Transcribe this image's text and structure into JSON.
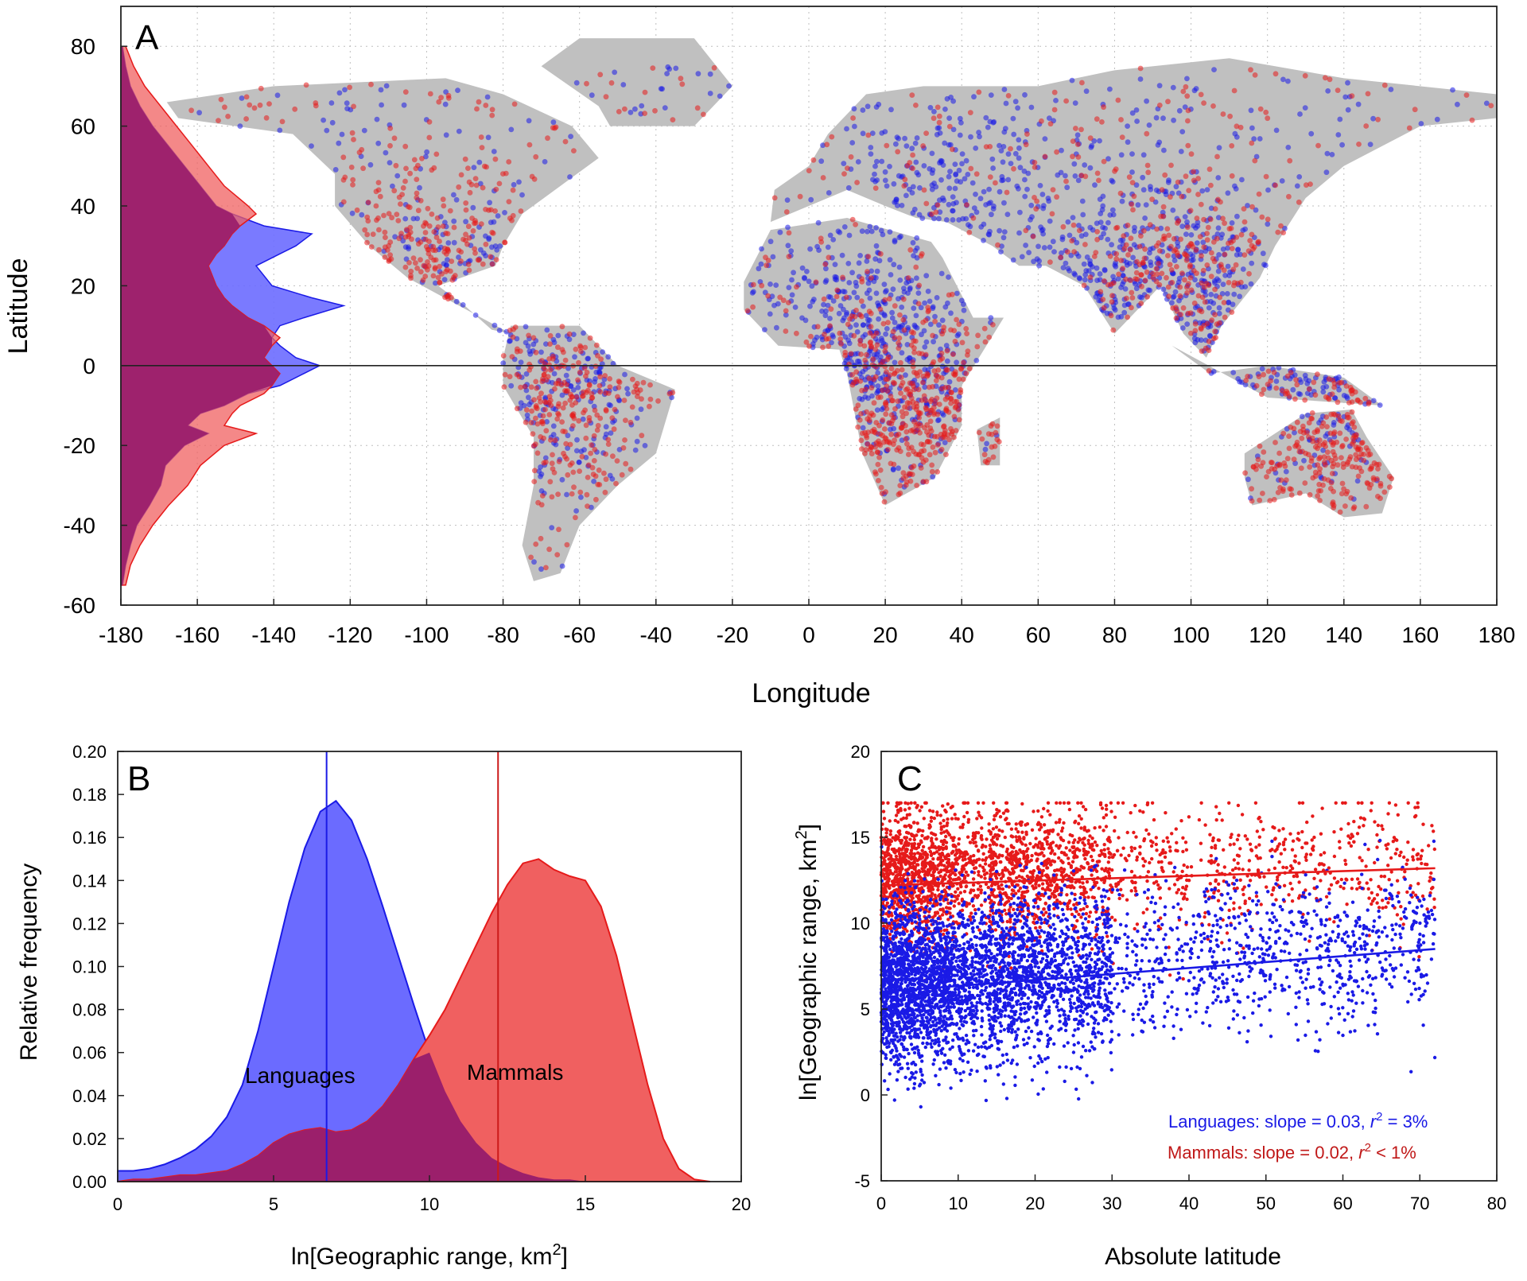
{
  "colors": {
    "languages": "#1a1ae6",
    "mammals": "#e61a1a",
    "land": "#c0c0c0",
    "grid": "#bfbfbf",
    "axis": "#222222",
    "languages_fill": "#6b6bff",
    "mammals_fill": "#f06060",
    "overlap_fill": "#9b1f6b"
  },
  "chart_data": [
    {
      "type": "scatter",
      "panel_label": "A",
      "xlabel": "Longitude",
      "ylabel": "Latitude",
      "xlim": [
        -180,
        180
      ],
      "ylim": [
        -60,
        90
      ],
      "xticks": [
        -180,
        -160,
        -140,
        -120,
        -100,
        -80,
        -60,
        -40,
        -20,
        0,
        20,
        40,
        60,
        80,
        100,
        120,
        140,
        160,
        180
      ],
      "yticks": [
        -60,
        -40,
        -20,
        0,
        20,
        40,
        60,
        80
      ],
      "xtick_labels": [
        "-180",
        "-160",
        "-140",
        "-120",
        "-100",
        "-80",
        "-60",
        "-40",
        "-20",
        "0",
        "20",
        "40",
        "60",
        "80",
        "100",
        "120",
        "140",
        "160",
        "180"
      ],
      "ytick_labels": [
        "-60",
        "-40",
        "-20",
        "0",
        "20",
        "40",
        "60",
        "80"
      ],
      "grid": true,
      "equator_line": 0,
      "series": [
        {
          "name": "Languages",
          "color": "#1a1ae6",
          "density_centers": [
            [
              10,
              12
            ],
            [
              25,
              0
            ],
            [
              80,
              25
            ],
            [
              100,
              20
            ],
            [
              140,
              -5
            ],
            [
              -90,
              15
            ],
            [
              -65,
              -5
            ],
            [
              35,
              45
            ],
            [
              115,
              5
            ]
          ]
        },
        {
          "name": "Mammals",
          "color": "#e61a1a",
          "density_centers": [
            [
              -65,
              -10
            ],
            [
              25,
              -5
            ],
            [
              100,
              20
            ],
            [
              135,
              -25
            ],
            [
              -100,
              25
            ],
            [
              47,
              -20
            ],
            [
              20,
              -28
            ],
            [
              145,
              -5
            ]
          ]
        }
      ],
      "marginal_histograms": {
        "latitudes": [
          -55,
          -50,
          -45,
          -40,
          -35,
          -30,
          -25,
          -20,
          -17,
          -15,
          -12,
          -10,
          -7,
          -5,
          -2,
          0,
          2,
          5,
          7,
          10,
          12,
          15,
          17,
          20,
          25,
          28,
          30,
          33,
          35,
          38,
          40,
          45,
          50,
          55,
          60,
          65,
          70,
          75,
          80
        ],
        "languages": [
          0.1,
          0.3,
          0.6,
          1.0,
          1.8,
          2.5,
          2.8,
          4.0,
          5.5,
          4.2,
          5.0,
          6.5,
          8.0,
          10.0,
          11.5,
          12.5,
          11.0,
          10.0,
          9.5,
          10.0,
          11.5,
          14.0,
          12.0,
          9.5,
          8.5,
          10.0,
          11.0,
          12.0,
          9.0,
          7.0,
          6.0,
          5.0,
          4.0,
          3.0,
          2.0,
          1.2,
          0.6,
          0.3,
          0.1
        ],
        "mammals": [
          0.3,
          0.6,
          1.2,
          2.0,
          3.0,
          4.2,
          5.0,
          6.5,
          8.5,
          6.5,
          7.0,
          7.5,
          9.0,
          9.5,
          10.0,
          9.5,
          9.0,
          9.5,
          10.0,
          9.0,
          8.0,
          7.0,
          6.5,
          6.0,
          5.5,
          6.0,
          6.5,
          7.0,
          7.5,
          8.5,
          8.0,
          6.5,
          5.5,
          4.5,
          3.5,
          2.5,
          1.5,
          0.8,
          0.3
        ]
      }
    },
    {
      "type": "area",
      "panel_label": "B",
      "xlabel": "ln[Geographic range, km",
      "xlabel_sup": "2",
      "xlabel_end": "]",
      "ylabel": "Relative frequency",
      "xlim": [
        0,
        20
      ],
      "ylim": [
        0,
        0.2
      ],
      "xticks": [
        0,
        5,
        10,
        15,
        20
      ],
      "yticks": [
        0,
        0.02,
        0.04,
        0.06,
        0.08,
        0.1,
        0.12,
        0.14,
        0.16,
        0.18,
        0.2
      ],
      "xtick_labels": [
        "0",
        "5",
        "10",
        "15",
        "20"
      ],
      "ytick_labels": [
        "0.00",
        "0.02",
        "0.04",
        "0.06",
        "0.08",
        "0.10",
        "0.12",
        "0.14",
        "0.16",
        "0.18",
        "0.20"
      ],
      "grid": false,
      "x": [
        0,
        0.5,
        1,
        1.5,
        2,
        2.5,
        3,
        3.5,
        4,
        4.5,
        5,
        5.5,
        6,
        6.5,
        7,
        7.5,
        8,
        8.5,
        9,
        9.5,
        10,
        10.5,
        11,
        11.5,
        12,
        12.5,
        13,
        13.5,
        14,
        14.5,
        15,
        15.5,
        16,
        16.5,
        17,
        17.5,
        18,
        18.5,
        19
      ],
      "series": [
        {
          "name": "Languages",
          "color": "#1a1ae6",
          "mean": 6.7,
          "values": [
            0.005,
            0.005,
            0.006,
            0.008,
            0.011,
            0.015,
            0.021,
            0.03,
            0.045,
            0.07,
            0.1,
            0.13,
            0.155,
            0.172,
            0.177,
            0.168,
            0.15,
            0.128,
            0.105,
            0.082,
            0.06,
            0.042,
            0.028,
            0.018,
            0.011,
            0.007,
            0.004,
            0.002,
            0.001,
            0.001,
            0,
            0,
            0,
            0,
            0,
            0,
            0,
            0,
            0
          ]
        },
        {
          "name": "Mammals",
          "color": "#e61a1a",
          "mean": 12.2,
          "values": [
            0,
            0.001,
            0.001,
            0.002,
            0.003,
            0.003,
            0.004,
            0.005,
            0.008,
            0.012,
            0.018,
            0.022,
            0.024,
            0.025,
            0.023,
            0.024,
            0.028,
            0.035,
            0.045,
            0.057,
            0.068,
            0.08,
            0.095,
            0.11,
            0.125,
            0.138,
            0.148,
            0.15,
            0.145,
            0.142,
            0.14,
            0.128,
            0.105,
            0.075,
            0.045,
            0.02,
            0.006,
            0.001,
            0
          ]
        }
      ],
      "annotations": [
        "Languages",
        "Mammals"
      ]
    },
    {
      "type": "scatter",
      "panel_label": "C",
      "xlabel": "Absolute latitude",
      "ylabel": "ln[Geographic range, km",
      "ylabel_sup": "2",
      "ylabel_end": "]",
      "xlim": [
        0,
        80
      ],
      "ylim": [
        -5,
        20
      ],
      "xticks": [
        0,
        10,
        20,
        30,
        40,
        50,
        60,
        70,
        80
      ],
      "yticks": [
        -5,
        0,
        5,
        10,
        15,
        20
      ],
      "xtick_labels": [
        "0",
        "10",
        "20",
        "30",
        "40",
        "50",
        "60",
        "70",
        "80"
      ],
      "ytick_labels": [
        "-5",
        "0",
        "5",
        "10",
        "15",
        "20"
      ],
      "grid": false,
      "series": [
        {
          "name": "Mammals",
          "color": "#e61a1a",
          "fit": {
            "x": [
              0,
              72
            ],
            "y": [
              12.2,
              13.2
            ]
          },
          "center": 13.3,
          "spread": 2.0,
          "min": 5.5,
          "max": 17
        },
        {
          "name": "Languages",
          "color": "#1a1ae6",
          "fit": {
            "x": [
              0,
              72
            ],
            "y": [
              6.0,
              8.5
            ]
          },
          "center": 6.7,
          "spread": 2.3,
          "min": -4.5,
          "max": 15
        }
      ],
      "legend": [
        {
          "name": "Languages",
          "text_before": "Languages: slope = 0.03, ",
          "r": "r",
          "sup": "2",
          "text_after": " = 3%"
        },
        {
          "name": "Mammals",
          "text_before": "Mammals: slope = 0.02, ",
          "r": "r",
          "sup": "2",
          "text_after": " < 1%"
        }
      ]
    }
  ]
}
